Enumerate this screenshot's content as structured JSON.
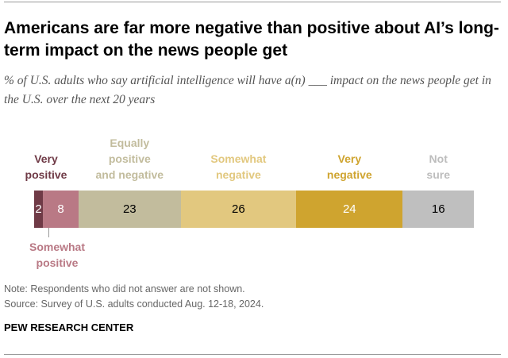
{
  "title": "Americans are far more negative than positive about AI’s long-term impact on the news people get",
  "subtitle": "% of U.S. adults who say artificial intelligence will have a(n) ___ impact on the news people get in the U.S. over the next 20 years",
  "chart_data": {
    "type": "bar",
    "orientation": "horizontal",
    "stacked": true,
    "categories": [
      "Very positive",
      "Somewhat positive",
      "Equally positive and negative",
      "Somewhat negative",
      "Very negative",
      "Not sure"
    ],
    "values": [
      2,
      8,
      23,
      26,
      24,
      16
    ],
    "labels": [
      "2",
      "8",
      "23",
      "26",
      "24",
      "16"
    ],
    "colors": [
      "#6f3a46",
      "#b97985",
      "#c2bc9d",
      "#e2c87f",
      "#cfa42f",
      "#bfbfbf"
    ],
    "label_colors": [
      "#fff",
      "#fff",
      "#000",
      "#000",
      "#fff",
      "#000"
    ]
  },
  "note": "Note: Respondents who did not answer are not shown.",
  "source": "Source: Survey of U.S. adults conducted Aug. 12-18, 2024.",
  "brand": "PEW RESEARCH CENTER"
}
